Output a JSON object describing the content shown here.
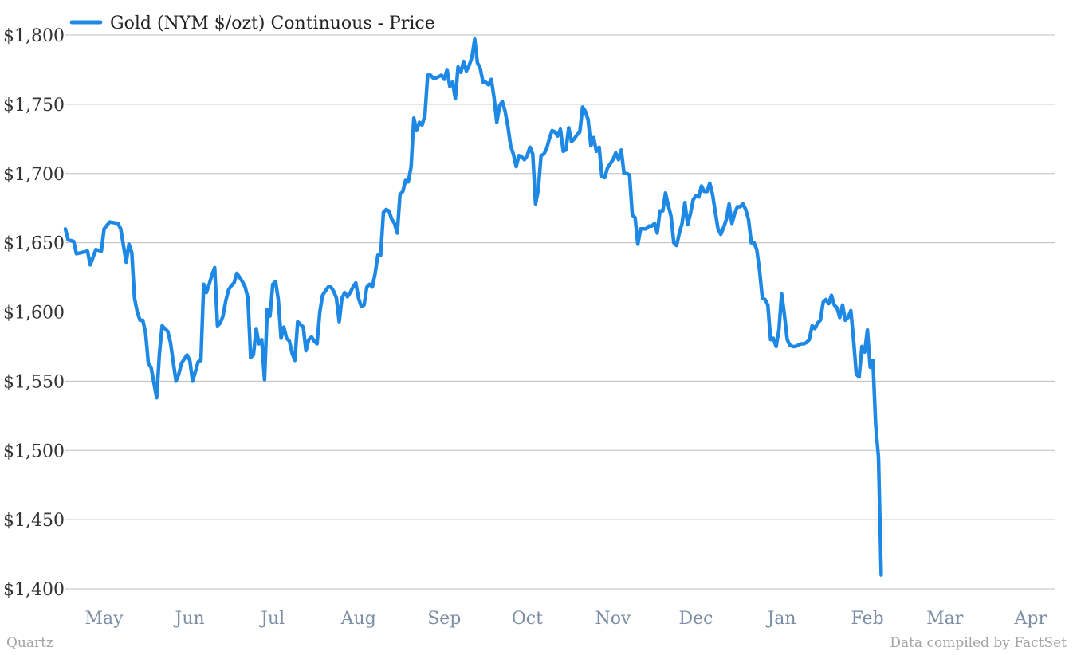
{
  "chart_data": {
    "type": "line",
    "title": "",
    "xlabel": "",
    "ylabel": "",
    "ylim": [
      1400,
      1800
    ],
    "y_ticks": [
      1400,
      1450,
      1500,
      1550,
      1600,
      1650,
      1700,
      1750,
      1800
    ],
    "y_tick_labels": [
      "$1,400",
      "$1,450",
      "$1,500",
      "$1,550",
      "$1,600",
      "$1,650",
      "$1,700",
      "$1,750",
      "$1,800"
    ],
    "x_tick_labels": [
      "May",
      "Jun",
      "Jul",
      "Aug",
      "Sep",
      "Oct",
      "Nov",
      "Dec",
      "Jan",
      "Feb",
      "Mar",
      "Apr"
    ],
    "x_tick_days": [
      14,
      45,
      75,
      106,
      137,
      167,
      198,
      228,
      259,
      290,
      318,
      349
    ],
    "x_range_days": [
      0,
      358
    ],
    "grid": true,
    "legend_position": "top-left",
    "series": [
      {
        "name": "Gold (NYM $/ozt) Continuous - Price",
        "color": "#1e88e5",
        "points": [
          [
            0,
            1660
          ],
          [
            1,
            1652
          ],
          [
            3,
            1651
          ],
          [
            4,
            1642
          ],
          [
            6,
            1643
          ],
          [
            8,
            1644
          ],
          [
            9,
            1634
          ],
          [
            11,
            1645
          ],
          [
            13,
            1644
          ],
          [
            14,
            1660
          ],
          [
            16,
            1665
          ],
          [
            19,
            1664
          ],
          [
            20,
            1660
          ],
          [
            22,
            1636
          ],
          [
            23,
            1649
          ],
          [
            24,
            1643
          ],
          [
            25,
            1610
          ],
          [
            26,
            1600
          ],
          [
            27,
            1594
          ],
          [
            28,
            1594
          ],
          [
            29,
            1585
          ],
          [
            30,
            1563
          ],
          [
            31,
            1560
          ],
          [
            33,
            1538
          ],
          [
            34,
            1570
          ],
          [
            35,
            1590
          ],
          [
            37,
            1586
          ],
          [
            38,
            1578
          ],
          [
            39,
            1564
          ],
          [
            40,
            1550
          ],
          [
            41,
            1555
          ],
          [
            42,
            1563
          ],
          [
            44,
            1569
          ],
          [
            45,
            1565
          ],
          [
            46,
            1550
          ],
          [
            47,
            1557
          ],
          [
            48,
            1564
          ],
          [
            49,
            1565
          ],
          [
            50,
            1620
          ],
          [
            51,
            1614
          ],
          [
            52,
            1620
          ],
          [
            53,
            1627
          ],
          [
            54,
            1632
          ],
          [
            55,
            1590
          ],
          [
            56,
            1592
          ],
          [
            57,
            1597
          ],
          [
            58,
            1608
          ],
          [
            59,
            1616
          ],
          [
            60,
            1619
          ],
          [
            61,
            1621
          ],
          [
            62,
            1628
          ],
          [
            63,
            1625
          ],
          [
            64,
            1622
          ],
          [
            65,
            1618
          ],
          [
            66,
            1610
          ],
          [
            67,
            1567
          ],
          [
            68,
            1569
          ],
          [
            69,
            1588
          ],
          [
            70,
            1577
          ],
          [
            71,
            1580
          ],
          [
            72,
            1551
          ],
          [
            73,
            1602
          ],
          [
            74,
            1597
          ],
          [
            75,
            1620
          ],
          [
            76,
            1622
          ],
          [
            77,
            1609
          ],
          [
            78,
            1581
          ],
          [
            79,
            1589
          ],
          [
            80,
            1581
          ],
          [
            81,
            1579
          ],
          [
            82,
            1570
          ],
          [
            83,
            1565
          ],
          [
            84,
            1593
          ],
          [
            85,
            1591
          ],
          [
            86,
            1589
          ],
          [
            87,
            1572
          ],
          [
            88,
            1580
          ],
          [
            89,
            1582
          ],
          [
            90,
            1579
          ],
          [
            91,
            1577
          ],
          [
            92,
            1600
          ],
          [
            93,
            1612
          ],
          [
            94,
            1615
          ],
          [
            95,
            1618
          ],
          [
            96,
            1618
          ],
          [
            97,
            1615
          ],
          [
            98,
            1610
          ],
          [
            99,
            1593
          ],
          [
            100,
            1610
          ],
          [
            101,
            1614
          ],
          [
            102,
            1611
          ],
          [
            103,
            1614
          ],
          [
            104,
            1618
          ],
          [
            105,
            1621
          ],
          [
            106,
            1610
          ],
          [
            107,
            1604
          ],
          [
            108,
            1605
          ],
          [
            109,
            1618
          ],
          [
            110,
            1620
          ],
          [
            111,
            1618
          ],
          [
            112,
            1628
          ],
          [
            113,
            1641
          ],
          [
            114,
            1641
          ],
          [
            115,
            1672
          ],
          [
            116,
            1674
          ],
          [
            117,
            1673
          ],
          [
            118,
            1667
          ],
          [
            119,
            1664
          ],
          [
            120,
            1657
          ],
          [
            121,
            1685
          ],
          [
            122,
            1687
          ],
          [
            123,
            1695
          ],
          [
            124,
            1694
          ],
          [
            125,
            1705
          ],
          [
            126,
            1740
          ],
          [
            127,
            1731
          ],
          [
            128,
            1737
          ],
          [
            129,
            1735
          ],
          [
            130,
            1742
          ],
          [
            131,
            1771
          ],
          [
            132,
            1771
          ],
          [
            133,
            1769
          ],
          [
            134,
            1769
          ],
          [
            135,
            1770
          ],
          [
            136,
            1771
          ],
          [
            137,
            1768
          ],
          [
            138,
            1775
          ],
          [
            139,
            1763
          ],
          [
            140,
            1766
          ],
          [
            141,
            1754
          ],
          [
            142,
            1777
          ],
          [
            143,
            1773
          ],
          [
            144,
            1781
          ],
          [
            145,
            1774
          ],
          [
            146,
            1778
          ],
          [
            147,
            1784
          ],
          [
            148,
            1797
          ],
          [
            149,
            1780
          ],
          [
            150,
            1776
          ],
          [
            151,
            1766
          ],
          [
            152,
            1766
          ],
          [
            153,
            1764
          ],
          [
            154,
            1768
          ],
          [
            155,
            1755
          ],
          [
            156,
            1737
          ],
          [
            157,
            1749
          ],
          [
            158,
            1752
          ],
          [
            159,
            1745
          ],
          [
            160,
            1734
          ],
          [
            161,
            1720
          ],
          [
            162,
            1714
          ],
          [
            163,
            1705
          ],
          [
            164,
            1713
          ],
          [
            165,
            1712
          ],
          [
            166,
            1710
          ],
          [
            167,
            1713
          ],
          [
            168,
            1719
          ],
          [
            169,
            1714
          ],
          [
            170,
            1678
          ],
          [
            171,
            1688
          ],
          [
            172,
            1713
          ],
          [
            173,
            1714
          ],
          [
            174,
            1718
          ],
          [
            175,
            1725
          ],
          [
            176,
            1731
          ],
          [
            177,
            1730
          ],
          [
            178,
            1727
          ],
          [
            179,
            1732
          ],
          [
            180,
            1716
          ],
          [
            181,
            1717
          ],
          [
            182,
            1733
          ],
          [
            183,
            1723
          ],
          [
            184,
            1725
          ],
          [
            185,
            1728
          ],
          [
            186,
            1730
          ],
          [
            187,
            1748
          ],
          [
            188,
            1745
          ],
          [
            189,
            1739
          ],
          [
            190,
            1720
          ],
          [
            191,
            1726
          ],
          [
            192,
            1716
          ],
          [
            193,
            1719
          ],
          [
            194,
            1698
          ],
          [
            195,
            1697
          ],
          [
            196,
            1704
          ],
          [
            197,
            1707
          ],
          [
            198,
            1710
          ],
          [
            199,
            1715
          ],
          [
            200,
            1710
          ],
          [
            201,
            1717
          ],
          [
            202,
            1700
          ],
          [
            203,
            1700
          ],
          [
            204,
            1699
          ],
          [
            205,
            1670
          ],
          [
            206,
            1668
          ],
          [
            207,
            1649
          ],
          [
            208,
            1660
          ],
          [
            209,
            1660
          ],
          [
            210,
            1660
          ],
          [
            211,
            1662
          ],
          [
            212,
            1662
          ],
          [
            213,
            1664
          ],
          [
            214,
            1657
          ],
          [
            215,
            1673
          ],
          [
            216,
            1673
          ],
          [
            217,
            1686
          ],
          [
            218,
            1677
          ],
          [
            219,
            1669
          ],
          [
            220,
            1650
          ],
          [
            221,
            1648
          ],
          [
            222,
            1657
          ],
          [
            223,
            1664
          ],
          [
            224,
            1679
          ],
          [
            225,
            1663
          ],
          [
            226,
            1671
          ],
          [
            227,
            1681
          ],
          [
            228,
            1684
          ],
          [
            229,
            1683
          ],
          [
            230,
            1691
          ],
          [
            231,
            1687
          ],
          [
            232,
            1687
          ],
          [
            233,
            1693
          ],
          [
            234,
            1685
          ],
          [
            235,
            1672
          ],
          [
            236,
            1660
          ],
          [
            237,
            1656
          ],
          [
            238,
            1661
          ],
          [
            239,
            1667
          ],
          [
            240,
            1678
          ],
          [
            241,
            1664
          ],
          [
            242,
            1671
          ],
          [
            243,
            1676
          ],
          [
            244,
            1676
          ],
          [
            245,
            1678
          ],
          [
            246,
            1674
          ],
          [
            247,
            1667
          ],
          [
            248,
            1650
          ],
          [
            249,
            1650
          ],
          [
            250,
            1645
          ],
          [
            251,
            1630
          ],
          [
            252,
            1610
          ],
          [
            253,
            1609
          ],
          [
            254,
            1605
          ],
          [
            255,
            1580
          ],
          [
            256,
            1581
          ],
          [
            257,
            1575
          ],
          [
            258,
            1587
          ],
          [
            259,
            1613
          ],
          [
            260,
            1598
          ],
          [
            261,
            1580
          ],
          [
            262,
            1576
          ],
          [
            263,
            1575
          ],
          [
            264,
            1575
          ],
          [
            265,
            1576
          ],
          [
            266,
            1577
          ],
          [
            267,
            1577
          ],
          [
            268,
            1578
          ],
          [
            269,
            1580
          ],
          [
            270,
            1590
          ],
          [
            271,
            1588
          ],
          [
            272,
            1592
          ],
          [
            273,
            1594
          ],
          [
            274,
            1607
          ],
          [
            275,
            1609
          ],
          [
            276,
            1606
          ],
          [
            277,
            1612
          ],
          [
            278,
            1605
          ],
          [
            279,
            1603
          ],
          [
            280,
            1596
          ],
          [
            281,
            1605
          ],
          [
            282,
            1594
          ],
          [
            283,
            1596
          ],
          [
            284,
            1601
          ],
          [
            285,
            1580
          ],
          [
            286,
            1555
          ],
          [
            287,
            1553
          ],
          [
            288,
            1575
          ],
          [
            289,
            1571
          ],
          [
            290,
            1587
          ],
          [
            291,
            1560
          ],
          [
            292,
            1565
          ],
          [
            293,
            1518
          ],
          [
            294,
            1495
          ],
          [
            295,
            1410
          ]
        ]
      }
    ]
  },
  "legend": {
    "label": "Gold (NYM $/ozt) Continuous - Price"
  },
  "footer": {
    "left": "Quartz",
    "right": "Data compiled by FactSet"
  }
}
